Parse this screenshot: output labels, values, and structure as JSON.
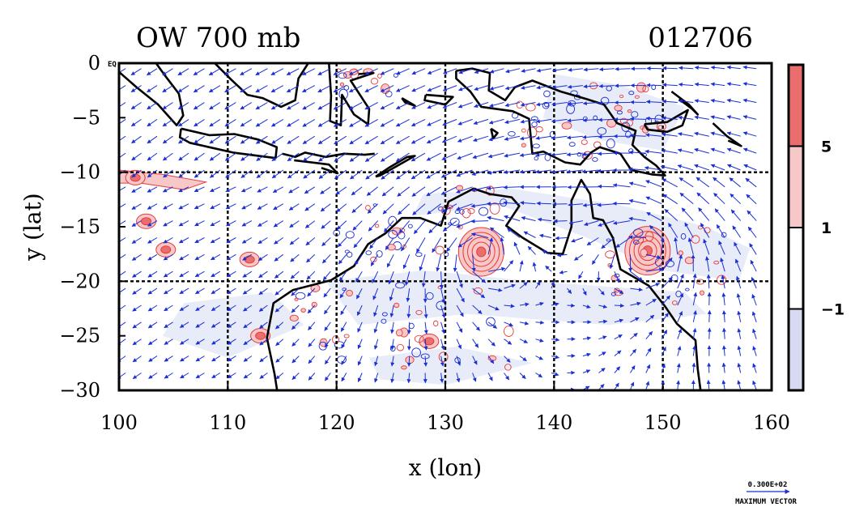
{
  "chart_data": {
    "type": "contour-vector-map",
    "title_left": "OW 700 mb",
    "title_right": "012706",
    "xlabel": "x (lon)",
    "ylabel": "y (lat)",
    "xlim": [
      100,
      160
    ],
    "ylim": [
      -30,
      0
    ],
    "xticks": [
      100,
      110,
      120,
      130,
      140,
      150,
      160
    ],
    "yticks": [
      0,
      -5,
      -10,
      -15,
      -20,
      -25,
      -30
    ],
    "xtick_labels": [
      "100",
      "110",
      "120",
      "130",
      "140",
      "150",
      "160"
    ],
    "ytick_labels": [
      "0",
      "−5",
      "−10",
      "−15",
      "−20",
      "−25",
      "−30"
    ],
    "grid_lon": [
      110,
      120,
      130,
      140,
      150
    ],
    "grid_lat": [
      -10,
      -20
    ],
    "corner_label": "EQ",
    "colorbar": {
      "levels": [
        -1,
        1,
        5
      ],
      "labels": [
        "5",
        "1",
        "−1"
      ],
      "colors": [
        "#ea6e6e",
        "#f6c8c8",
        "#ffffff",
        "#d6daf2"
      ]
    },
    "vector_key": {
      "value_label": "0.300E+02",
      "caption": "MAXIMUM VECTOR"
    },
    "features": {
      "cyclone_centers": [
        [
          133.3,
          -17.3
        ],
        [
          148.6,
          -17.2
        ]
      ],
      "positive_patches": [
        [
          101.5,
          -10.5
        ],
        [
          104.3,
          -17.1
        ],
        [
          102.5,
          -14.5
        ],
        [
          112.0,
          -18.0
        ],
        [
          113.0,
          -25.0
        ],
        [
          128.5,
          -25.5
        ]
      ]
    }
  },
  "colors": {
    "vector": "#1a2fd6",
    "coast": "#000000",
    "positive": "#ea6e6e",
    "negative": "#d6daf2"
  }
}
